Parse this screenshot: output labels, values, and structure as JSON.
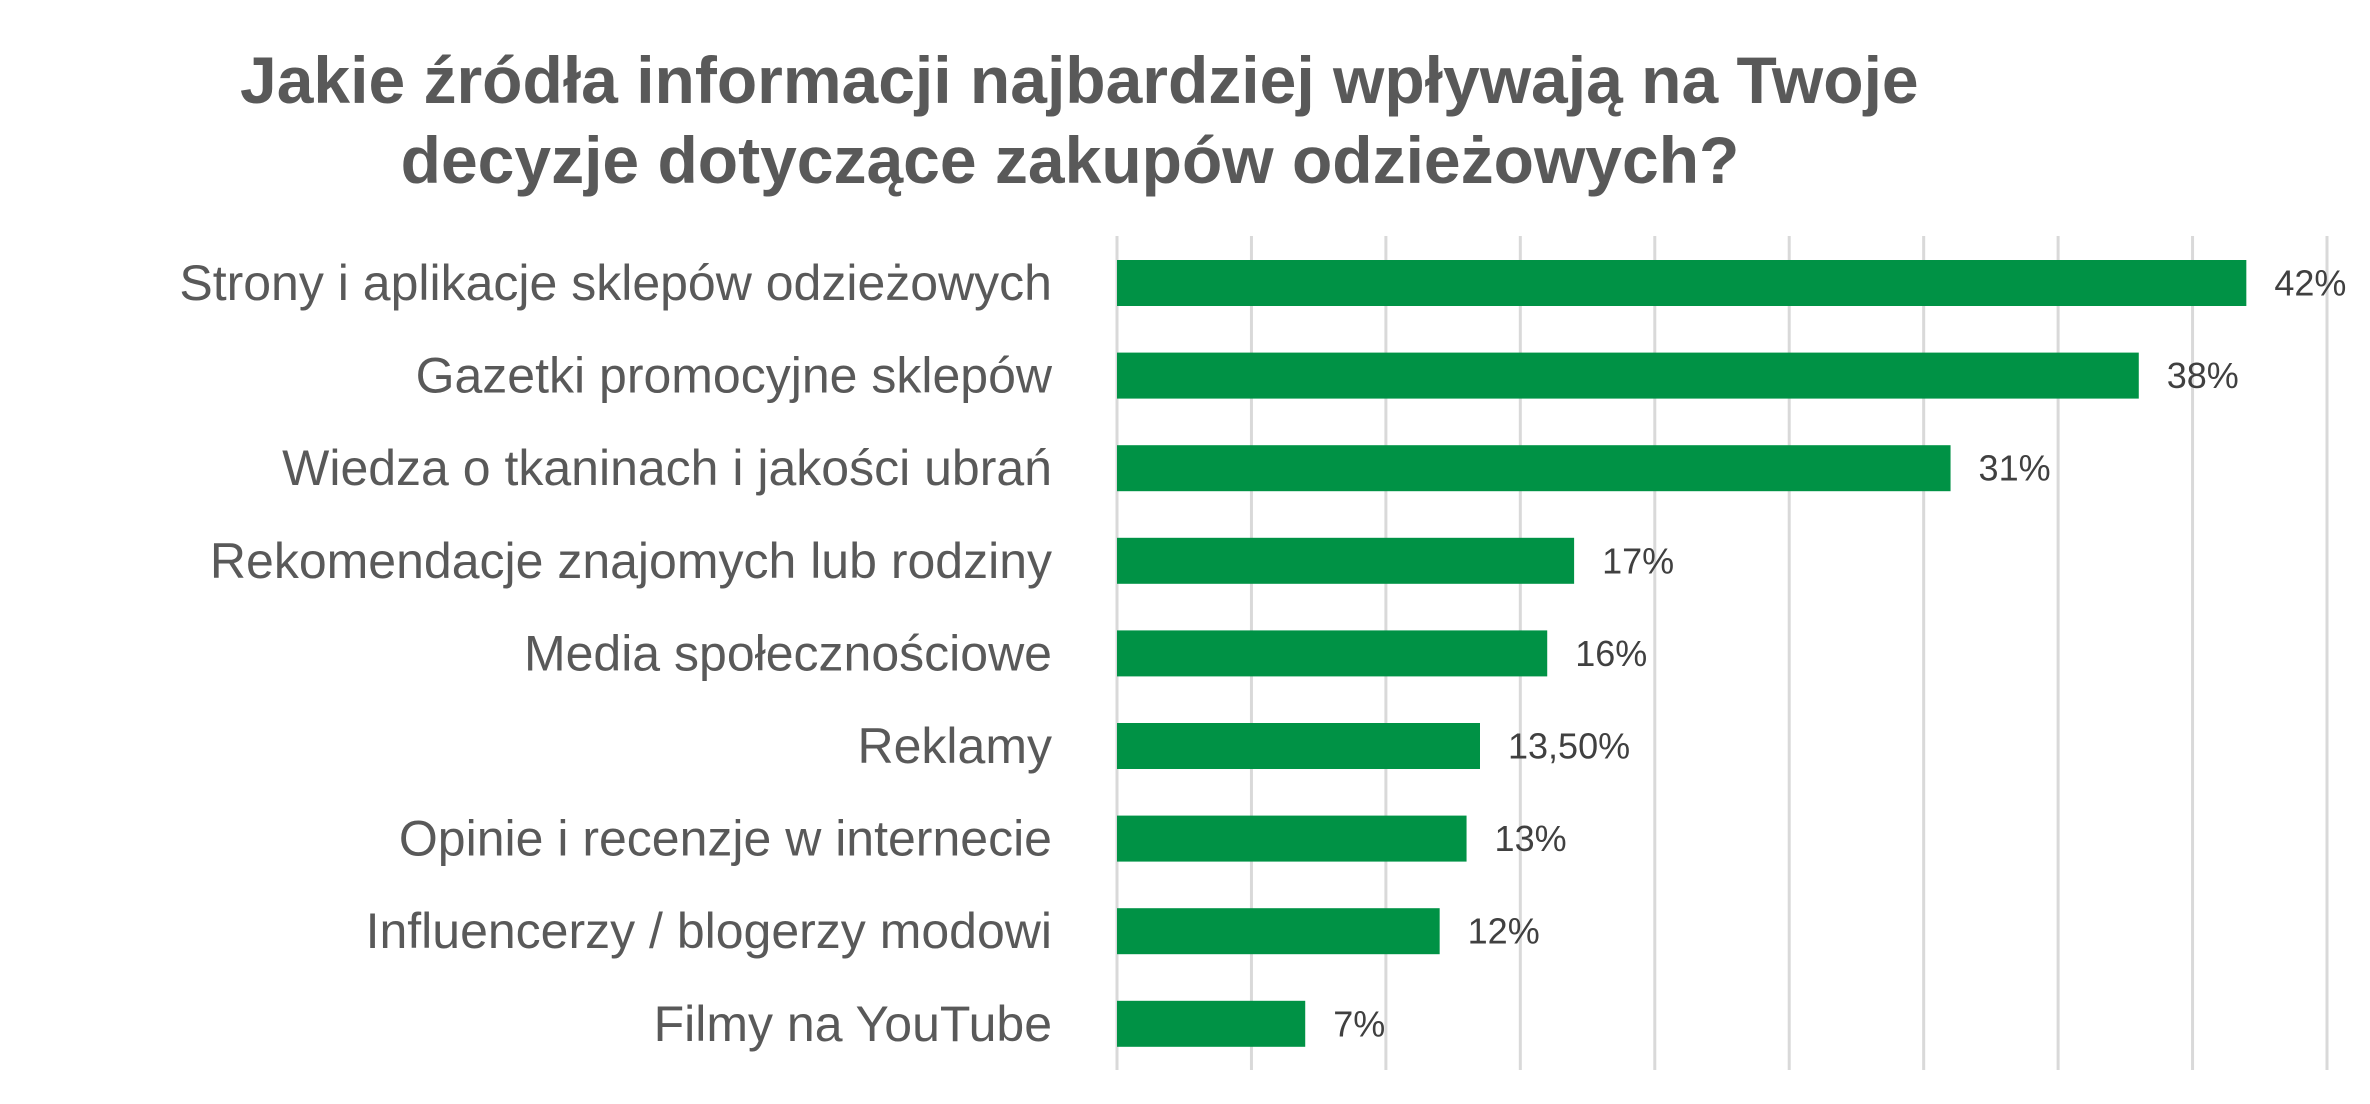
{
  "chart_data": {
    "type": "bar",
    "orientation": "horizontal",
    "title_lines": [
      "Jakie źródła informacji najbardziej wpływają na Twoje",
      "decyzje dotyczące zakupów odzieżowych?"
    ],
    "categories": [
      "Strony i aplikacje sklepów odzieżowych",
      "Gazetki promocyjne sklepów",
      "Wiedza o tkaninach i jakości ubrań ",
      "Rekomendacje znajomych lub rodziny",
      "Media społecznościowe",
      "Reklamy",
      "Opinie i recenzje w internecie",
      "Influencerzy / blogerzy modowi",
      "Filmy na YouTube"
    ],
    "values": [
      42,
      38,
      31,
      17,
      16,
      13.5,
      13,
      12,
      7
    ],
    "data_labels": [
      "42%",
      "38%",
      "31%",
      "17%",
      "16%",
      "13,50%",
      "13%",
      "12%",
      "7%"
    ],
    "xlim": [
      0,
      45
    ],
    "gridline_step": 5,
    "grid": true,
    "legend": "none",
    "bar_color": "#009245",
    "grid_color": "#d9d9d9"
  }
}
